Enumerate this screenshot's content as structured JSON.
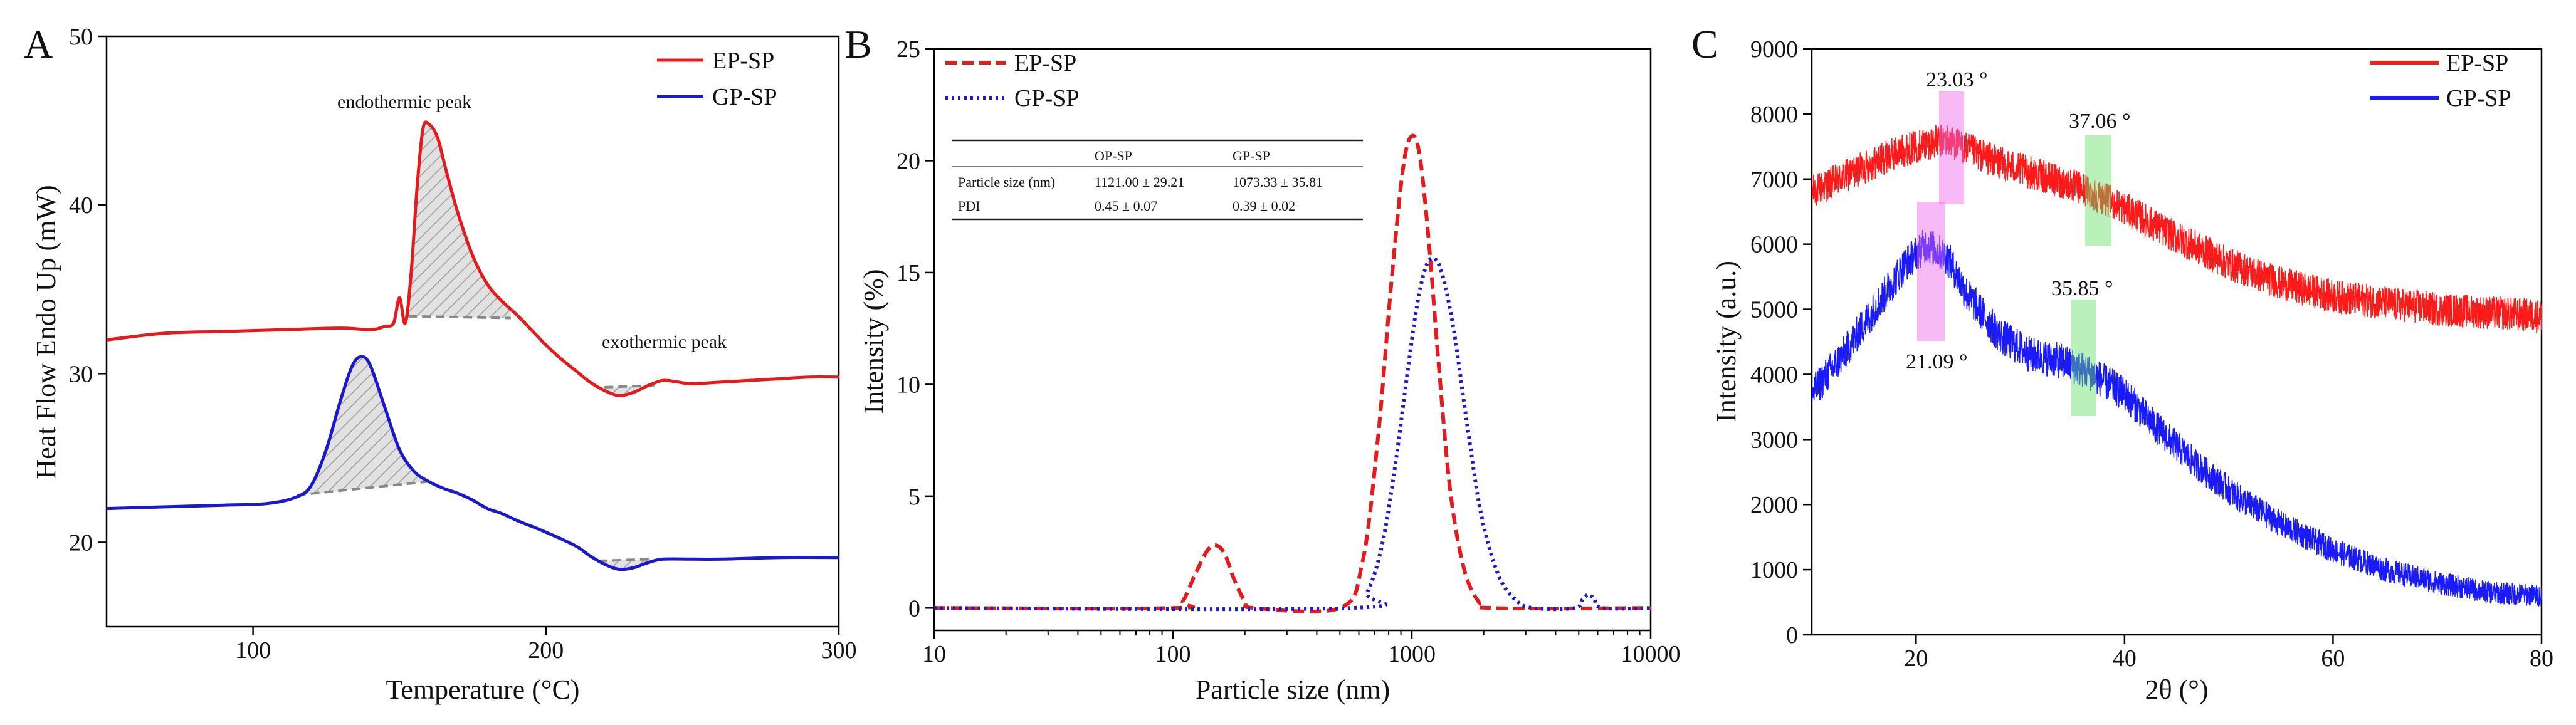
{
  "chart_data": [
    {
      "panel": "A",
      "type": "line",
      "xlabel": "Temperature (°C)",
      "ylabel": "Heat Flow Endo Up (mW)",
      "xlim": [
        50,
        300
      ],
      "ylim": [
        15,
        50
      ],
      "xticks": [
        100,
        200,
        300
      ],
      "yticks": [
        20,
        30,
        40,
        50
      ],
      "series": [
        {
          "name": "EP-SP",
          "color": "#e41a1c",
          "x": [
            50,
            70,
            90,
            110,
            130,
            140,
            145,
            148,
            150,
            152,
            154,
            156,
            158,
            160,
            163,
            166,
            170,
            175,
            180,
            185,
            190,
            195,
            200,
            205,
            210,
            215,
            220,
            225,
            230,
            235,
            240,
            245,
            250,
            260,
            270,
            280,
            290,
            300
          ],
          "y": [
            32.0,
            32.4,
            32.5,
            32.6,
            32.7,
            32.6,
            32.8,
            33.0,
            34.5,
            33.0,
            36.0,
            41.0,
            44.5,
            44.8,
            44.0,
            42.0,
            39.5,
            37.0,
            35.3,
            34.3,
            33.5,
            32.6,
            31.7,
            30.9,
            30.2,
            29.5,
            29.0,
            28.7,
            28.9,
            29.3,
            29.6,
            29.5,
            29.4,
            29.5,
            29.6,
            29.7,
            29.8,
            29.8
          ]
        },
        {
          "name": "GP-SP",
          "color": "#1a1acc",
          "x": [
            50,
            70,
            90,
            105,
            115,
            120,
            125,
            130,
            134,
            137,
            140,
            145,
            150,
            155,
            160,
            165,
            170,
            175,
            180,
            185,
            190,
            200,
            210,
            215,
            220,
            225,
            230,
            235,
            240,
            250,
            260,
            280,
            300
          ],
          "y": [
            22.0,
            22.1,
            22.2,
            22.3,
            22.7,
            23.4,
            25.5,
            28.5,
            30.5,
            31.0,
            30.5,
            28.0,
            25.5,
            24.2,
            23.6,
            23.2,
            22.9,
            22.5,
            22.0,
            21.7,
            21.3,
            20.6,
            19.8,
            19.2,
            18.7,
            18.4,
            18.5,
            18.8,
            19.0,
            19.0,
            19.0,
            19.1,
            19.1
          ]
        }
      ],
      "annotations": [
        "endothermic peak",
        "exothermic peak"
      ]
    },
    {
      "panel": "B",
      "type": "line",
      "xscale": "log",
      "xlabel": "Particle size (nm)",
      "ylabel": "Intensity (%)",
      "xlim": [
        10,
        10000
      ],
      "ylim": [
        -1,
        25
      ],
      "xticks": [
        10,
        100,
        1000,
        10000
      ],
      "xtick_labels": [
        "10",
        "100",
        "1000",
        "10000"
      ],
      "yticks": [
        0,
        5,
        10,
        15,
        20,
        25
      ],
      "series": [
        {
          "name": "EP-SP",
          "color": "#e41a1c",
          "style": "dashed",
          "x": [
            10,
            100,
            110,
            125,
            140,
            152,
            165,
            180,
            200,
            220,
            500,
            620,
            720,
            820,
            920,
            1000,
            1080,
            1180,
            1300,
            1450,
            1650,
            1900,
            2200,
            10000
          ],
          "y": [
            0,
            0,
            0.3,
            1.6,
            2.6,
            2.8,
            2.4,
            1.3,
            0.3,
            0,
            0,
            2.0,
            7.5,
            14.5,
            19.7,
            21.1,
            20.2,
            16.3,
            10.7,
            5.2,
            1.8,
            0.3,
            0,
            0
          ]
        },
        {
          "name": "GP-SP",
          "color": "#1a1acc",
          "style": "dotted",
          "x": [
            10,
            550,
            650,
            750,
            850,
            950,
            1050,
            1150,
            1250,
            1350,
            1500,
            1700,
            1950,
            2300,
            2700,
            3200,
            4800,
            5200,
            5500,
            5800,
            6300,
            10000
          ],
          "y": [
            0,
            0,
            0.7,
            2.8,
            6.3,
            10.2,
            13.5,
            15.3,
            15.6,
            14.8,
            12.4,
            8.3,
            4.2,
            1.5,
            0.4,
            0,
            0,
            0.4,
            0.6,
            0.4,
            0,
            0
          ]
        }
      ],
      "table": {
        "headers": [
          "",
          "OP-SP",
          "GP-SP"
        ],
        "rows": [
          [
            "Particle size (nm)",
            "1121.00 ± 29.21",
            "1073.33 ± 35.81"
          ],
          [
            "PDI",
            "0.45 ± 0.07",
            "0.39 ± 0.02"
          ]
        ]
      }
    },
    {
      "panel": "C",
      "type": "line",
      "xlabel": "2θ (°)",
      "ylabel": "Intensity (a.u.)",
      "xlim": [
        10,
        80
      ],
      "ylim": [
        0,
        9000
      ],
      "xticks": [
        20,
        40,
        60,
        80
      ],
      "yticks": [
        0,
        1000,
        2000,
        3000,
        4000,
        5000,
        6000,
        7000,
        8000,
        9000
      ],
      "series": [
        {
          "name": "EP-SP",
          "color": "#ff1a1a",
          "x": [
            10,
            14,
            18,
            21,
            23,
            25,
            28,
            32,
            36,
            40,
            45,
            50,
            55,
            60,
            65,
            70,
            75,
            80
          ],
          "y": [
            6800,
            7100,
            7400,
            7550,
            7600,
            7450,
            7250,
            7050,
            6850,
            6550,
            6100,
            5700,
            5400,
            5200,
            5100,
            5000,
            4950,
            4900
          ]
        },
        {
          "name": "GP-SP",
          "color": "#1a1aff",
          "x": [
            10,
            13,
            16,
            19,
            21,
            23,
            25,
            28,
            31,
            34,
            37,
            40,
            43,
            47,
            51,
            55,
            60,
            65,
            70,
            75,
            80
          ],
          "y": [
            3700,
            4300,
            5000,
            5700,
            6000,
            5800,
            5200,
            4600,
            4300,
            4200,
            4000,
            3700,
            3200,
            2600,
            2100,
            1700,
            1300,
            1000,
            800,
            650,
            600
          ]
        }
      ],
      "peak_labels": [
        "23.03 °",
        "37.06 °",
        "35.85 °",
        "21.09 °"
      ]
    }
  ],
  "panel_letters": [
    "A",
    "B",
    "C"
  ]
}
